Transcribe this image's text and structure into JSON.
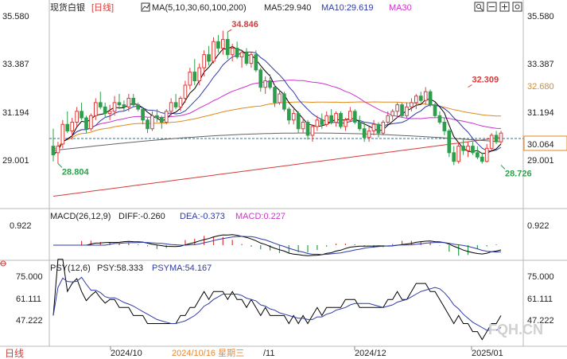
{
  "header": {
    "instrument": "现货白银",
    "period": "[日线]",
    "ma_label": "MA(5,10,30,60,100,200)",
    "ma5": "MA5:29.940",
    "ma10": "MA10:29.619",
    "ma30": "MA30"
  },
  "macd_header": {
    "label": "MACD(26,12,9)",
    "diff": "DIFF:-0.260",
    "dea": "DEA:-0.373",
    "macd": "MACD:0.227"
  },
  "psy_header": {
    "label": "PSY(12,6)",
    "psy": "PSY:58.333",
    "psyma": "PSYMA:54.167"
  },
  "footer": {
    "period_tab": "日线",
    "dates": [
      "2024/10",
      "2024/10/16 星期三",
      "/11",
      "2024/12",
      "2025/01"
    ],
    "watermark": "FQH.CN"
  },
  "colors": {
    "up": "#e03b3b",
    "down": "#2e9e4d",
    "ma5": "#000000",
    "ma10": "#2f3aa8",
    "ma30": "#cc33cc",
    "ma60": "#e08a1e",
    "ma100": "#666666",
    "ma200": "#d63a3a",
    "diff": "#000000",
    "dea": "#2f3aa8",
    "psy": "#000000",
    "psyma": "#2f3aa8"
  },
  "icons": [
    "search-icon",
    "zoom-out-icon",
    "zoom-in-icon",
    "settings-icon"
  ],
  "chart_data": [
    {
      "type": "candlestick",
      "title": "现货白银 [日线]",
      "y_ticks": [
        "35.580",
        "33.387",
        "31.194",
        "29.001"
      ],
      "ylim": [
        27.3,
        35.6
      ],
      "current_price": "30.064",
      "price_tag": "32.680",
      "annotations": [
        {
          "text": "34.846",
          "value": 34.846,
          "bar": 37
        },
        {
          "text": "32.309",
          "value": 32.309,
          "bar": 88
        },
        {
          "text": "28.726",
          "value": 28.726,
          "bar": 95
        },
        {
          "text": "28.804",
          "value": 28.804,
          "bar": 1
        }
      ],
      "ohlc": [
        [
          29.6,
          30.4,
          28.9,
          29.2
        ],
        [
          29.3,
          29.8,
          28.8,
          29.6
        ],
        [
          29.7,
          30.8,
          29.5,
          30.6
        ],
        [
          30.6,
          31.2,
          30.2,
          30.3
        ],
        [
          30.3,
          30.9,
          29.9,
          30.7
        ],
        [
          30.7,
          31.4,
          30.5,
          31.2
        ],
        [
          31.2,
          31.6,
          30.8,
          30.9
        ],
        [
          30.9,
          31.0,
          30.2,
          30.4
        ],
        [
          30.4,
          31.1,
          30.3,
          31.0
        ],
        [
          31.0,
          31.8,
          30.8,
          31.6
        ],
        [
          31.6,
          32.1,
          31.3,
          31.4
        ],
        [
          31.4,
          31.6,
          30.9,
          31.1
        ],
        [
          31.1,
          31.5,
          30.8,
          31.2
        ],
        [
          31.2,
          31.9,
          31.0,
          31.6
        ],
        [
          31.6,
          32.0,
          31.3,
          31.5
        ],
        [
          31.5,
          31.7,
          31.2,
          31.4
        ],
        [
          31.4,
          32.0,
          31.2,
          31.8
        ],
        [
          31.8,
          32.0,
          31.4,
          31.5
        ],
        [
          31.5,
          31.6,
          31.2,
          31.3
        ],
        [
          31.3,
          31.4,
          30.6,
          30.8
        ],
        [
          30.8,
          30.9,
          30.2,
          30.4
        ],
        [
          30.4,
          31.2,
          30.3,
          31.0
        ],
        [
          31.0,
          31.3,
          30.7,
          30.9
        ],
        [
          30.9,
          31.0,
          30.4,
          30.7
        ],
        [
          30.7,
          31.3,
          30.6,
          31.2
        ],
        [
          31.2,
          31.8,
          31.0,
          31.6
        ],
        [
          31.6,
          32.0,
          31.3,
          31.4
        ],
        [
          31.4,
          31.9,
          31.2,
          31.8
        ],
        [
          31.8,
          32.6,
          31.6,
          32.4
        ],
        [
          32.4,
          33.2,
          32.2,
          33.0
        ],
        [
          33.0,
          33.6,
          32.4,
          32.6
        ],
        [
          32.6,
          33.4,
          32.4,
          33.2
        ],
        [
          33.2,
          34.0,
          32.8,
          33.8
        ],
        [
          33.8,
          34.2,
          33.3,
          33.5
        ],
        [
          33.5,
          34.6,
          33.4,
          34.4
        ],
        [
          34.4,
          34.7,
          33.9,
          34.1
        ],
        [
          34.1,
          34.9,
          33.8,
          34.5
        ],
        [
          34.5,
          34.85,
          33.6,
          33.8
        ],
        [
          33.8,
          34.3,
          33.5,
          34.1
        ],
        [
          34.1,
          34.4,
          33.6,
          33.7
        ],
        [
          33.7,
          34.0,
          33.2,
          33.9
        ],
        [
          33.9,
          34.1,
          33.3,
          33.4
        ],
        [
          33.4,
          33.9,
          33.2,
          33.8
        ],
        [
          33.8,
          34.0,
          33.0,
          33.1
        ],
        [
          33.1,
          33.2,
          32.1,
          32.3
        ],
        [
          32.3,
          32.8,
          32.0,
          32.6
        ],
        [
          32.6,
          32.9,
          32.2,
          32.3
        ],
        [
          32.3,
          32.4,
          31.4,
          31.6
        ],
        [
          31.6,
          32.2,
          31.5,
          32.0
        ],
        [
          32.0,
          32.1,
          31.2,
          31.3
        ],
        [
          31.3,
          31.4,
          30.6,
          30.8
        ],
        [
          30.8,
          31.3,
          30.6,
          31.1
        ],
        [
          31.1,
          31.2,
          30.2,
          30.4
        ],
        [
          30.4,
          30.9,
          30.2,
          30.7
        ],
        [
          30.7,
          30.8,
          29.9,
          30.1
        ],
        [
          30.1,
          30.6,
          29.8,
          30.5
        ],
        [
          30.5,
          31.0,
          30.3,
          30.8
        ],
        [
          30.8,
          31.1,
          30.4,
          30.6
        ],
        [
          30.6,
          31.2,
          30.5,
          31.0
        ],
        [
          31.0,
          31.3,
          30.6,
          30.7
        ],
        [
          30.7,
          31.2,
          30.5,
          31.1
        ],
        [
          31.1,
          31.2,
          30.4,
          30.5
        ],
        [
          30.5,
          30.9,
          30.3,
          30.8
        ],
        [
          30.8,
          31.4,
          30.7,
          31.2
        ],
        [
          31.2,
          31.3,
          30.6,
          30.7
        ],
        [
          30.7,
          31.0,
          30.3,
          30.4
        ],
        [
          30.4,
          30.7,
          29.8,
          30.0
        ],
        [
          30.0,
          30.5,
          29.8,
          30.3
        ],
        [
          30.3,
          30.8,
          30.1,
          30.6
        ],
        [
          30.6,
          30.7,
          30.0,
          30.2
        ],
        [
          30.2,
          30.8,
          30.1,
          30.7
        ],
        [
          30.7,
          31.2,
          30.6,
          31.0
        ],
        [
          31.0,
          31.3,
          30.8,
          31.2
        ],
        [
          31.2,
          31.6,
          30.9,
          31.5
        ],
        [
          31.5,
          31.6,
          30.9,
          31.0
        ],
        [
          31.0,
          31.6,
          30.9,
          31.4
        ],
        [
          31.4,
          31.8,
          31.2,
          31.6
        ],
        [
          31.6,
          32.0,
          31.3,
          31.9
        ],
        [
          31.9,
          32.1,
          31.6,
          31.7
        ],
        [
          31.7,
          32.31,
          31.5,
          32.1
        ],
        [
          32.1,
          32.2,
          31.4,
          31.5
        ],
        [
          31.5,
          31.6,
          30.9,
          31.0
        ],
        [
          31.0,
          31.2,
          30.6,
          30.7
        ],
        [
          30.7,
          30.9,
          30.1,
          30.3
        ],
        [
          30.3,
          30.4,
          29.1,
          29.3
        ],
        [
          29.3,
          29.6,
          28.73,
          28.9
        ],
        [
          28.9,
          29.8,
          28.8,
          29.6
        ],
        [
          29.6,
          29.9,
          29.2,
          29.4
        ],
        [
          29.4,
          29.8,
          29.1,
          29.6
        ],
        [
          29.6,
          29.8,
          29.2,
          29.3
        ],
        [
          29.3,
          29.6,
          29.0,
          29.1
        ],
        [
          29.1,
          29.3,
          28.8,
          28.9
        ],
        [
          28.9,
          29.7,
          28.85,
          29.5
        ],
        [
          29.5,
          30.2,
          29.4,
          30.1
        ],
        [
          30.1,
          30.3,
          29.7,
          29.8
        ],
        [
          29.8,
          30.3,
          29.7,
          30.2
        ]
      ],
      "series": [
        {
          "name": "MA5",
          "values_note": "computed"
        },
        {
          "name": "MA10",
          "values_note": "computed"
        },
        {
          "name": "MA30",
          "values_note": "computed"
        }
      ]
    },
    {
      "type": "line",
      "title": "MACD(26,12,9)",
      "y_ticks": [
        "0.922"
      ],
      "series_names": [
        "DIFF",
        "DEA",
        "MACD"
      ]
    },
    {
      "type": "line",
      "title": "PSY(12,6)",
      "y_ticks": [
        "75.000",
        "61.111",
        "47.222"
      ],
      "series_names": [
        "PSY",
        "PSYMA"
      ]
    }
  ]
}
